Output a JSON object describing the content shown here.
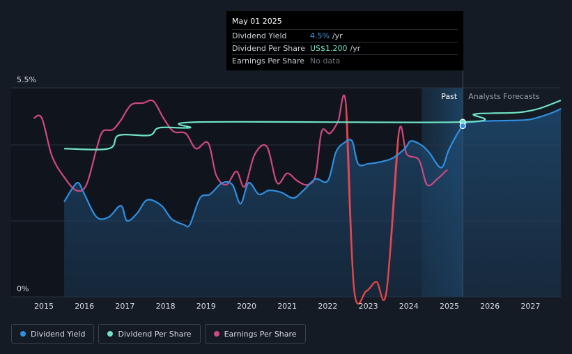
{
  "tooltip": {
    "date": "May 01 2025",
    "rows": [
      {
        "label": "Dividend Yield",
        "value": "4.5%",
        "unit": "/yr"
      },
      {
        "label": "Dividend Per Share",
        "value": "US$1.200",
        "unit": "/yr"
      },
      {
        "label": "Earnings Per Share",
        "value": "No data",
        "unit": ""
      }
    ]
  },
  "zones": {
    "past": "Past",
    "forecast": "Analysts Forecasts"
  },
  "legend": [
    {
      "label": "Dividend Yield",
      "color": "#2f8fe0"
    },
    {
      "label": "Dividend Per Share",
      "color": "#6fe3c4"
    },
    {
      "label": "Earnings Per Share",
      "color": "#d0487f"
    }
  ],
  "chart_data": {
    "type": "line",
    "x_ticks": [
      2015,
      2016,
      2017,
      2018,
      2019,
      2020,
      2021,
      2022,
      2023,
      2024,
      2025,
      2026,
      2027
    ],
    "xlim": [
      2014.0,
      2027.75
    ],
    "y_tick_labels": [
      "5.5%",
      "0%"
    ],
    "ylim": [
      0,
      5.5
    ],
    "grid": true,
    "past_forecast_split": 2025.33,
    "series": [
      {
        "name": "Dividend Yield",
        "color": "#2f8fe0",
        "fill": true,
        "points": [
          [
            2015.5,
            2.5
          ],
          [
            2015.7,
            2.85
          ],
          [
            2015.85,
            3.0
          ],
          [
            2016.0,
            2.7
          ],
          [
            2016.3,
            2.1
          ],
          [
            2016.6,
            2.1
          ],
          [
            2016.9,
            2.4
          ],
          [
            2017.05,
            2.0
          ],
          [
            2017.3,
            2.2
          ],
          [
            2017.55,
            2.55
          ],
          [
            2017.9,
            2.4
          ],
          [
            2018.15,
            2.05
          ],
          [
            2018.45,
            1.9
          ],
          [
            2018.6,
            1.9
          ],
          [
            2018.85,
            2.6
          ],
          [
            2019.1,
            2.7
          ],
          [
            2019.4,
            3.0
          ],
          [
            2019.65,
            2.95
          ],
          [
            2019.85,
            2.45
          ],
          [
            2020.05,
            3.0
          ],
          [
            2020.3,
            2.7
          ],
          [
            2020.55,
            2.8
          ],
          [
            2020.85,
            2.75
          ],
          [
            2021.15,
            2.6
          ],
          [
            2021.4,
            2.8
          ],
          [
            2021.7,
            3.1
          ],
          [
            2022.0,
            3.05
          ],
          [
            2022.2,
            3.8
          ],
          [
            2022.4,
            4.05
          ],
          [
            2022.6,
            4.1
          ],
          [
            2022.75,
            3.5
          ],
          [
            2023.0,
            3.5
          ],
          [
            2023.3,
            3.55
          ],
          [
            2023.6,
            3.65
          ],
          [
            2023.9,
            3.9
          ],
          [
            2024.05,
            4.1
          ],
          [
            2024.3,
            4.0
          ],
          [
            2024.5,
            3.8
          ],
          [
            2024.8,
            3.4
          ],
          [
            2025.0,
            3.9
          ],
          [
            2025.33,
            4.5
          ],
          [
            2025.6,
            4.6
          ],
          [
            2026.0,
            4.63
          ],
          [
            2026.5,
            4.64
          ],
          [
            2027.0,
            4.67
          ],
          [
            2027.5,
            4.83
          ],
          [
            2027.75,
            4.95
          ]
        ]
      },
      {
        "name": "Dividend Per Share",
        "color": "#6fe3c4",
        "fill": false,
        "points": [
          [
            2015.5,
            3.9
          ],
          [
            2016.6,
            3.9
          ],
          [
            2016.85,
            4.25
          ],
          [
            2017.6,
            4.25
          ],
          [
            2017.85,
            4.45
          ],
          [
            2018.6,
            4.45
          ],
          [
            2018.85,
            4.6
          ],
          [
            2025.33,
            4.6
          ],
          [
            2025.6,
            4.8
          ],
          [
            2026.0,
            4.83
          ],
          [
            2026.7,
            4.85
          ],
          [
            2027.2,
            4.95
          ],
          [
            2027.75,
            5.17
          ]
        ]
      },
      {
        "name": "Earnings Per Share",
        "color": "#d0487f",
        "fill": false,
        "points": [
          [
            2014.75,
            4.7
          ],
          [
            2014.95,
            4.7
          ],
          [
            2015.2,
            3.7
          ],
          [
            2015.5,
            3.15
          ],
          [
            2015.8,
            2.8
          ],
          [
            2016.05,
            2.95
          ],
          [
            2016.3,
            3.9
          ],
          [
            2016.45,
            4.35
          ],
          [
            2016.7,
            4.4
          ],
          [
            2016.9,
            4.65
          ],
          [
            2017.15,
            5.05
          ],
          [
            2017.45,
            5.1
          ],
          [
            2017.7,
            5.15
          ],
          [
            2017.95,
            4.7
          ],
          [
            2018.2,
            4.35
          ],
          [
            2018.5,
            4.3
          ],
          [
            2018.75,
            3.9
          ],
          [
            2019.05,
            4.05
          ],
          [
            2019.25,
            3.2
          ],
          [
            2019.5,
            2.95
          ],
          [
            2019.75,
            3.3
          ],
          [
            2019.95,
            2.9
          ],
          [
            2020.2,
            3.75
          ],
          [
            2020.5,
            3.95
          ],
          [
            2020.75,
            3.0
          ],
          [
            2021.0,
            3.25
          ],
          [
            2021.25,
            3.05
          ],
          [
            2021.5,
            2.95
          ],
          [
            2021.7,
            3.2
          ],
          [
            2021.85,
            4.35
          ],
          [
            2022.05,
            4.3
          ],
          [
            2022.25,
            4.6
          ],
          [
            2022.45,
            5.05
          ],
          [
            2022.65,
            0.2
          ],
          [
            2022.95,
            0.15
          ],
          [
            2023.2,
            0.4
          ],
          [
            2023.45,
            0.15
          ],
          [
            2023.75,
            4.3
          ],
          [
            2023.95,
            3.75
          ],
          [
            2024.25,
            3.6
          ],
          [
            2024.45,
            2.95
          ],
          [
            2024.7,
            3.1
          ],
          [
            2024.95,
            3.35
          ]
        ]
      }
    ],
    "markers": [
      {
        "series": "Dividend Per Share",
        "x": 2025.33,
        "y": 4.6
      },
      {
        "series": "Dividend Yield",
        "x": 2025.33,
        "y": 4.5
      }
    ]
  }
}
